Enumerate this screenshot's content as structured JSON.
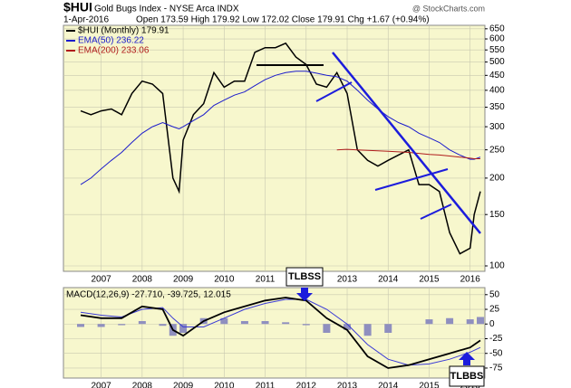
{
  "chart_data": [
    {
      "type": "line",
      "symbol": "$HUI",
      "title": "Gold Bugs Index - NYSE Arca INDX",
      "watermark": "@ StockCharts.com",
      "date": "1-Apr-2016",
      "quote": "Open 173.59 High 179.92 Low 172.02 Close 179.91 Chg +1.67 (+0.94%)",
      "x": [
        2006.5,
        2006.75,
        2007.0,
        2007.25,
        2007.5,
        2007.75,
        2008.0,
        2008.25,
        2008.5,
        2008.75,
        2008.9,
        2009.0,
        2009.25,
        2009.5,
        2009.75,
        2010.0,
        2010.25,
        2010.5,
        2010.75,
        2011.0,
        2011.25,
        2011.5,
        2011.75,
        2012.0,
        2012.25,
        2012.5,
        2012.75,
        2013.0,
        2013.25,
        2013.5,
        2013.75,
        2014.0,
        2014.25,
        2014.5,
        2014.75,
        2015.0,
        2015.25,
        2015.5,
        2015.75,
        2016.0,
        2016.1,
        2016.25
      ],
      "series": [
        {
          "name": "$HUI (Monthly) 179.91",
          "color": "#000000",
          "width": 1.5,
          "values": [
            340,
            330,
            340,
            345,
            330,
            390,
            430,
            420,
            390,
            200,
            180,
            270,
            330,
            360,
            460,
            410,
            430,
            430,
            540,
            560,
            560,
            580,
            520,
            490,
            420,
            410,
            460,
            390,
            250,
            230,
            220,
            230,
            240,
            250,
            190,
            190,
            180,
            130,
            110,
            115,
            150,
            180
          ]
        },
        {
          "name": "EMA(50) 236.22",
          "color": "#1c1ccc",
          "width": 1,
          "values": [
            190,
            200,
            215,
            230,
            245,
            265,
            285,
            300,
            310,
            300,
            295,
            300,
            315,
            330,
            355,
            370,
            385,
            395,
            415,
            435,
            450,
            460,
            465,
            465,
            458,
            450,
            445,
            430,
            400,
            370,
            345,
            325,
            310,
            300,
            285,
            275,
            265,
            250,
            240,
            232,
            232,
            236
          ]
        },
        {
          "name": "EMA(200) 233.06",
          "color": "#b01c1c",
          "width": 1,
          "values": [
            null,
            null,
            null,
            null,
            null,
            null,
            null,
            null,
            null,
            null,
            null,
            null,
            null,
            null,
            null,
            null,
            null,
            null,
            null,
            null,
            null,
            null,
            null,
            null,
            null,
            null,
            250,
            251,
            250,
            249,
            248,
            247,
            246,
            245,
            243,
            241,
            240,
            238,
            236,
            234,
            233,
            233
          ]
        }
      ],
      "xlim": [
        2006.08,
        2016.36
      ],
      "xticks": [
        2007,
        2008,
        2009,
        2010,
        2011,
        2012,
        2013,
        2014,
        2015,
        2016
      ],
      "ylim": [
        95.8,
        668
      ],
      "log_scale": true,
      "yticks": [
        100,
        150,
        200,
        250,
        300,
        350,
        400,
        450,
        500,
        550,
        600,
        650
      ],
      "grid": true,
      "background": "#f7f7cd",
      "annotations": [
        "TLBSS"
      ]
    },
    {
      "type": "line",
      "label": "MACD(12,26,9) -27.710, -39.725, 12.015",
      "x": [
        2006.5,
        2007,
        2007.5,
        2008,
        2008.5,
        2008.75,
        2009,
        2009.5,
        2010,
        2010.5,
        2011,
        2011.5,
        2012,
        2012.5,
        2013,
        2013.5,
        2014,
        2014.5,
        2015,
        2015.5,
        2016,
        2016.25
      ],
      "series": [
        {
          "type": "bar",
          "color": "#8f8fbf",
          "values": [
            -5,
            -5,
            -2,
            5,
            -3,
            -20,
            -15,
            10,
            10,
            5,
            5,
            3,
            -2,
            -15,
            -10,
            -20,
            -15,
            0,
            8,
            10,
            8,
            12
          ]
        },
        {
          "color": "#3a3ad6",
          "width": 1,
          "values": [
            20,
            15,
            12,
            25,
            28,
            10,
            -5,
            -5,
            10,
            25,
            35,
            42,
            42,
            25,
            0,
            -35,
            -60,
            -70,
            -68,
            -60,
            -48,
            -40
          ]
        },
        {
          "color": "#000000",
          "width": 1.8,
          "values": [
            15,
            10,
            10,
            30,
            25,
            -10,
            -20,
            5,
            20,
            30,
            40,
            45,
            40,
            10,
            -10,
            -55,
            -75,
            -70,
            -60,
            -50,
            -40,
            -28
          ]
        }
      ],
      "xlim": [
        2006.08,
        2016.36
      ],
      "xticks": [
        2007,
        2008,
        2009,
        2010,
        2011,
        2012,
        2013,
        2014,
        2015,
        2016
      ],
      "ylim": [
        -92,
        62
      ],
      "log_scale": false,
      "yticks": [
        -75,
        -50,
        -25,
        0,
        25,
        50
      ],
      "grid": true,
      "background": "#f7f7cd",
      "annotations": [
        "TLBBS"
      ]
    }
  ]
}
